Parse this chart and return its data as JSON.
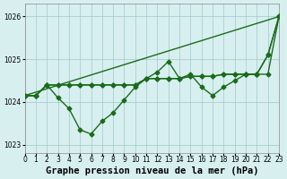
{
  "bg_color": "#d8eff0",
  "grid_color": "#a0c8c8",
  "line_color": "#1a6b1a",
  "title": "Graphe pression niveau de la mer (hPa)",
  "xlim": [
    0,
    23
  ],
  "ylim": [
    1022.8,
    1026.3
  ],
  "yticks": [
    1023,
    1024,
    1025,
    1026
  ],
  "xticks": [
    0,
    1,
    2,
    3,
    4,
    5,
    6,
    7,
    8,
    9,
    10,
    11,
    12,
    13,
    14,
    15,
    16,
    17,
    18,
    19,
    20,
    21,
    22,
    23
  ],
  "line1_y": [
    1024.15,
    1024.15,
    1024.4,
    1024.4,
    1024.4,
    1024.4,
    1024.4,
    1024.4,
    1024.4,
    1024.4,
    1024.4,
    1024.55,
    1024.55,
    1024.55,
    1024.55,
    1024.6,
    1024.6,
    1024.6,
    1024.65,
    1024.65,
    1024.65,
    1024.65,
    1024.65,
    1026.0
  ],
  "line2_y": [
    1024.15,
    1024.15,
    1024.4,
    1024.1,
    1023.85,
    1023.35,
    1023.25,
    1023.55,
    1023.75,
    1024.05,
    1024.35,
    1024.55,
    1024.7,
    1024.95,
    1024.55,
    1024.65,
    1024.35,
    1024.15,
    1024.35,
    1024.5,
    1024.65,
    1024.65,
    1025.1,
    1026.0
  ],
  "line3_x": [
    0,
    23
  ],
  "line3_y": [
    1024.15,
    1026.0
  ],
  "line4_y": [
    1024.15,
    1024.15,
    1024.4,
    1024.4,
    1024.4,
    1024.4,
    1024.4,
    1024.4,
    1024.4,
    1024.4,
    1024.4,
    1024.55,
    1024.55,
    1024.55,
    1024.55,
    1024.6,
    1024.6,
    1024.6,
    1024.65,
    1024.65,
    1024.65,
    1024.65,
    1025.1,
    1026.0
  ],
  "marker": "D",
  "markersize": 2.5,
  "linewidth": 1.0,
  "title_fontsize": 7.5,
  "tick_fontsize": 5.5
}
